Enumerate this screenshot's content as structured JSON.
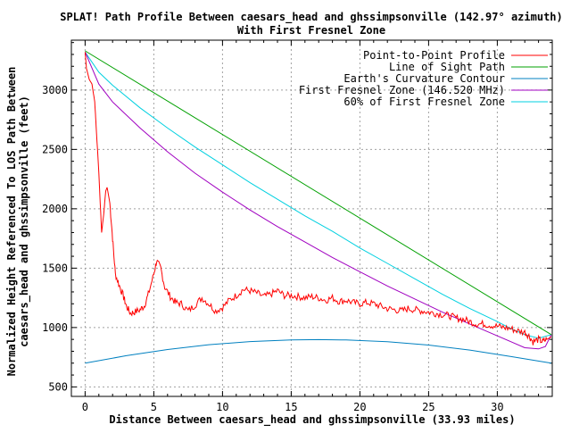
{
  "chart_data": {
    "type": "line",
    "title": "SPLAT! Path Profile Between caesars_head and ghssimpsonville (142.97° azimuth)",
    "subtitle": "With First Fresnel Zone",
    "xlabel": "Distance Between caesars_head and ghssimpsonville (33.93 miles)",
    "ylabel": "Normalized Height Referenced To LOS Path Between",
    "ylabel2": "caesars_head and ghssimpsonville (feet)",
    "xlim": [
      -1,
      34
    ],
    "ylim": [
      420,
      3420
    ],
    "x_ticks": [
      0,
      5,
      10,
      15,
      20,
      25,
      30
    ],
    "y_ticks": [
      500,
      1000,
      1500,
      2000,
      2500,
      3000
    ],
    "grid": true,
    "legend_position": "top-right",
    "series": [
      {
        "name": "Point-to-Point Profile",
        "color": "#ff0000",
        "noise": 30,
        "points": [
          [
            0,
            3320
          ],
          [
            0.1,
            3180
          ],
          [
            0.3,
            3090
          ],
          [
            0.5,
            3050
          ],
          [
            0.7,
            2900
          ],
          [
            0.8,
            2700
          ],
          [
            1.0,
            2300
          ],
          [
            1.2,
            1800
          ],
          [
            1.35,
            1950
          ],
          [
            1.5,
            2150
          ],
          [
            1.6,
            2180
          ],
          [
            1.8,
            2050
          ],
          [
            2.0,
            1750
          ],
          [
            2.2,
            1450
          ],
          [
            2.5,
            1350
          ],
          [
            2.8,
            1260
          ],
          [
            3.0,
            1180
          ],
          [
            3.3,
            1120
          ],
          [
            3.6,
            1130
          ],
          [
            4.0,
            1150
          ],
          [
            4.3,
            1180
          ],
          [
            4.6,
            1280
          ],
          [
            5.0,
            1450
          ],
          [
            5.2,
            1560
          ],
          [
            5.5,
            1500
          ],
          [
            5.8,
            1340
          ],
          [
            6.2,
            1260
          ],
          [
            6.6,
            1210
          ],
          [
            7.0,
            1200
          ],
          [
            7.5,
            1140
          ],
          [
            8.0,
            1190
          ],
          [
            8.5,
            1250
          ],
          [
            9.0,
            1200
          ],
          [
            9.5,
            1140
          ],
          [
            10.0,
            1170
          ],
          [
            10.5,
            1230
          ],
          [
            11.0,
            1270
          ],
          [
            11.5,
            1320
          ],
          [
            12.0,
            1310
          ],
          [
            12.5,
            1290
          ],
          [
            13.0,
            1260
          ],
          [
            13.5,
            1280
          ],
          [
            14.0,
            1310
          ],
          [
            14.5,
            1270
          ],
          [
            15.0,
            1270
          ],
          [
            15.5,
            1260
          ],
          [
            16.0,
            1250
          ],
          [
            16.5,
            1260
          ],
          [
            17.0,
            1250
          ],
          [
            17.5,
            1230
          ],
          [
            18.0,
            1250
          ],
          [
            18.5,
            1220
          ],
          [
            19.0,
            1230
          ],
          [
            19.5,
            1210
          ],
          [
            20.0,
            1200
          ],
          [
            20.5,
            1210
          ],
          [
            21.0,
            1200
          ],
          [
            21.5,
            1180
          ],
          [
            22.0,
            1160
          ],
          [
            22.5,
            1150
          ],
          [
            23.0,
            1140
          ],
          [
            23.5,
            1160
          ],
          [
            24.0,
            1150
          ],
          [
            24.5,
            1140
          ],
          [
            25.0,
            1130
          ],
          [
            25.5,
            1120
          ],
          [
            26.0,
            1110
          ],
          [
            26.5,
            1100
          ],
          [
            27.0,
            1080
          ],
          [
            27.5,
            1070
          ],
          [
            28.0,
            1050
          ],
          [
            28.5,
            1030
          ],
          [
            29.0,
            1030
          ],
          [
            29.5,
            1020
          ],
          [
            30.0,
            1010
          ],
          [
            30.5,
            1000
          ],
          [
            31.0,
            990
          ],
          [
            31.5,
            970
          ],
          [
            32.0,
            960
          ],
          [
            32.3,
            930
          ],
          [
            32.6,
            880
          ],
          [
            33.0,
            900
          ],
          [
            33.3,
            880
          ],
          [
            33.6,
            900
          ],
          [
            33.93,
            920
          ]
        ]
      },
      {
        "name": "Line of Sight Path",
        "color": "#00a000",
        "points": [
          [
            0,
            3330
          ],
          [
            33.93,
            940
          ]
        ]
      },
      {
        "name": "Earth's Curvature Contour",
        "color": "#0080c0",
        "points": [
          [
            0,
            700
          ],
          [
            3,
            763
          ],
          [
            6,
            815
          ],
          [
            9,
            855
          ],
          [
            12,
            882
          ],
          [
            15,
            896
          ],
          [
            17,
            898
          ],
          [
            19,
            895
          ],
          [
            22,
            880
          ],
          [
            25,
            852
          ],
          [
            28,
            810
          ],
          [
            31,
            755
          ],
          [
            33.93,
            700
          ]
        ]
      },
      {
        "name": "First Fresnel Zone (146.520 MHz)",
        "color": "#a000c0",
        "points": [
          [
            0,
            3320
          ],
          [
            1,
            3050
          ],
          [
            2,
            2900
          ],
          [
            4,
            2680
          ],
          [
            6,
            2480
          ],
          [
            8,
            2300
          ],
          [
            10,
            2140
          ],
          [
            12,
            1990
          ],
          [
            14,
            1850
          ],
          [
            16,
            1720
          ],
          [
            18,
            1590
          ],
          [
            20,
            1470
          ],
          [
            22,
            1350
          ],
          [
            24,
            1240
          ],
          [
            26,
            1130
          ],
          [
            28,
            1030
          ],
          [
            30,
            930
          ],
          [
            31,
            880
          ],
          [
            32,
            830
          ],
          [
            33,
            820
          ],
          [
            33.5,
            840
          ],
          [
            33.93,
            940
          ]
        ]
      },
      {
        "name": "60% of First Fresnel Zone",
        "color": "#00d0e0",
        "points": [
          [
            0,
            3320
          ],
          [
            1,
            3150
          ],
          [
            2,
            3040
          ],
          [
            4,
            2850
          ],
          [
            6,
            2680
          ],
          [
            8,
            2520
          ],
          [
            10,
            2370
          ],
          [
            12,
            2220
          ],
          [
            14,
            2080
          ],
          [
            16,
            1940
          ],
          [
            18,
            1810
          ],
          [
            20,
            1670
          ],
          [
            22,
            1540
          ],
          [
            24,
            1410
          ],
          [
            26,
            1280
          ],
          [
            28,
            1160
          ],
          [
            30,
            1050
          ],
          [
            31,
            990
          ],
          [
            32,
            940
          ],
          [
            33,
            910
          ],
          [
            33.93,
            940
          ]
        ]
      }
    ]
  }
}
